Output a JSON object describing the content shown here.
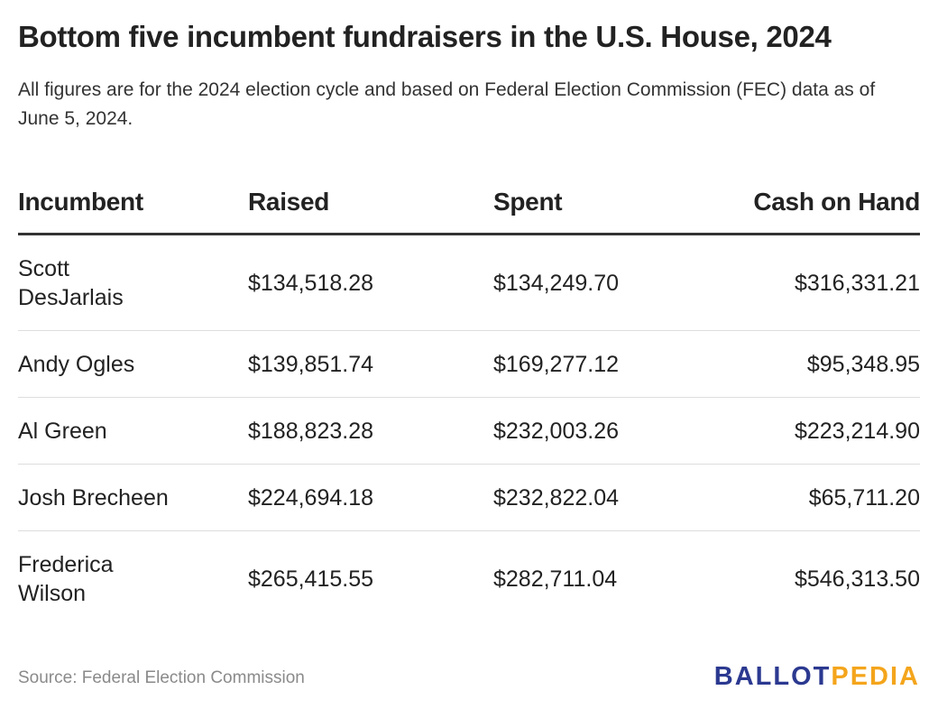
{
  "title": "Bottom five incumbent fundraisers in the U.S. House, 2024",
  "subtitle": "All figures are for the 2024 election cycle and based on Federal Election Commission (FEC) data as of June 5, 2024.",
  "source": "Source: Federal Election Commission",
  "logo": {
    "part1": "BALLOT",
    "part2": "PEDIA",
    "color1": "#2b3990",
    "color2": "#f4a51c"
  },
  "chart_data": {
    "type": "table",
    "columns": [
      "Incumbent",
      "Raised",
      "Spent",
      "Cash on Hand"
    ],
    "rows": [
      [
        "Scott DesJarlais",
        "$134,518.28",
        "$134,249.70",
        "$316,331.21"
      ],
      [
        "Andy Ogles",
        "$139,851.74",
        "$169,277.12",
        "$95,348.95"
      ],
      [
        "Al Green",
        "$188,823.28",
        "$232,003.26",
        "$223,214.90"
      ],
      [
        "Josh Brecheen",
        "$224,694.18",
        "$232,822.04",
        "$65,711.20"
      ],
      [
        "Frederica Wilson",
        "$265,415.55",
        "$282,711.04",
        "$546,313.50"
      ]
    ]
  }
}
